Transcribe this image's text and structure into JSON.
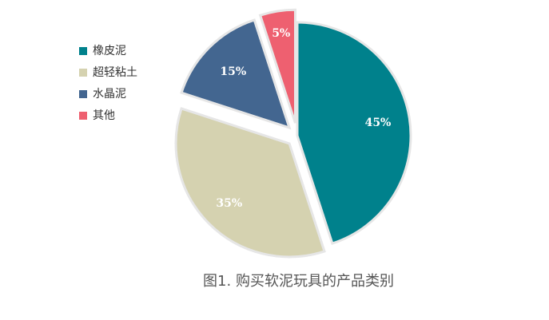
{
  "chart_data": {
    "type": "pie",
    "title": "图1. 购买软泥玩具的产品类别",
    "categories": [
      "橡皮泥",
      "超轻粘土",
      "水晶泥",
      "其他"
    ],
    "values": [
      45,
      35,
      15,
      5
    ],
    "labels": [
      "45%",
      "35%",
      "15%",
      "5%"
    ],
    "colors": [
      "#00818c",
      "#d5d2b0",
      "#436690",
      "#ee6070"
    ],
    "legend": "left"
  }
}
